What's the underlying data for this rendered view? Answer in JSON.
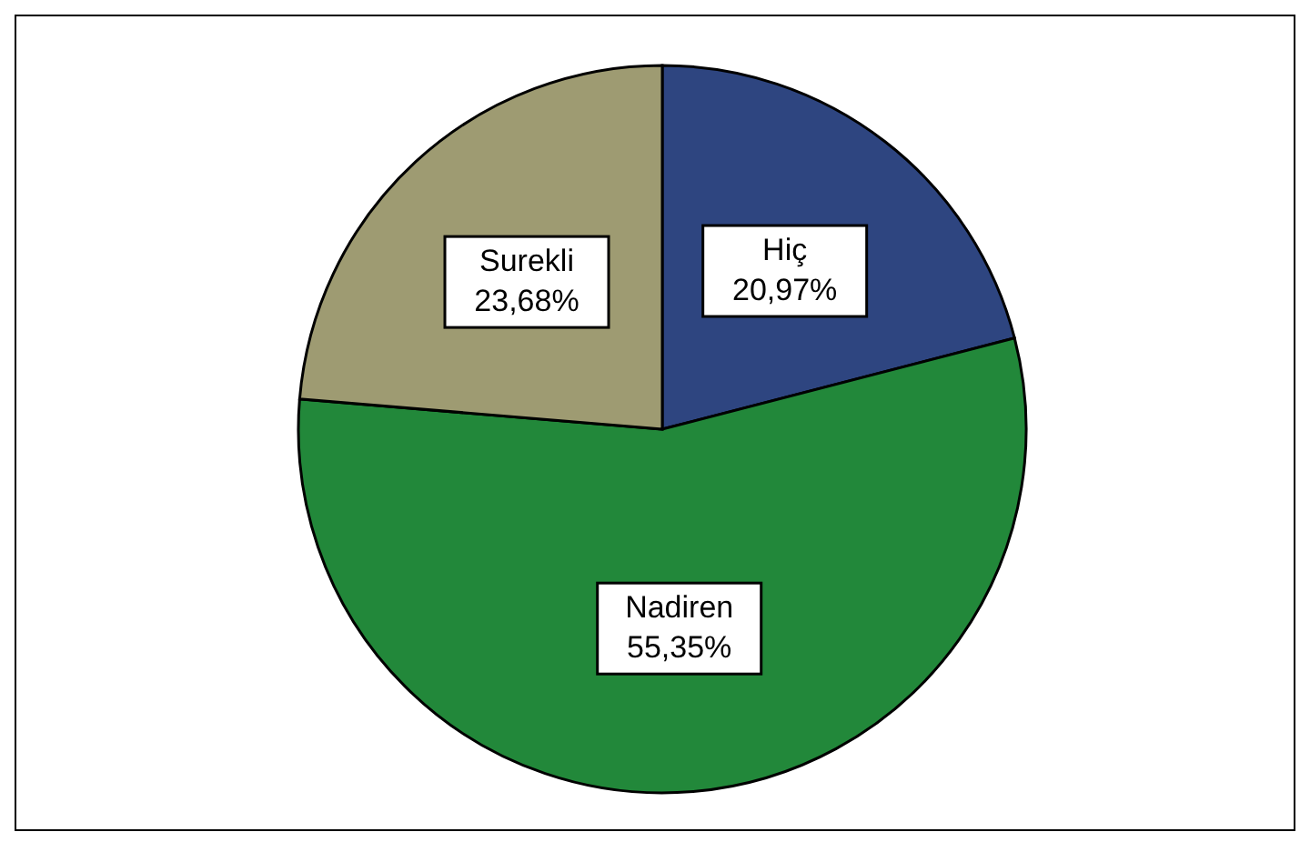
{
  "chart_data": {
    "type": "pie",
    "categories": [
      "Hiç",
      "Nadiren",
      "Surekli"
    ],
    "values": [
      20.97,
      55.35,
      23.68
    ],
    "value_labels": [
      "20,97%",
      "55,35%",
      "23,68%"
    ],
    "colors": [
      "#2e4580",
      "#22883a",
      "#9e9b72"
    ],
    "legend": false
  }
}
